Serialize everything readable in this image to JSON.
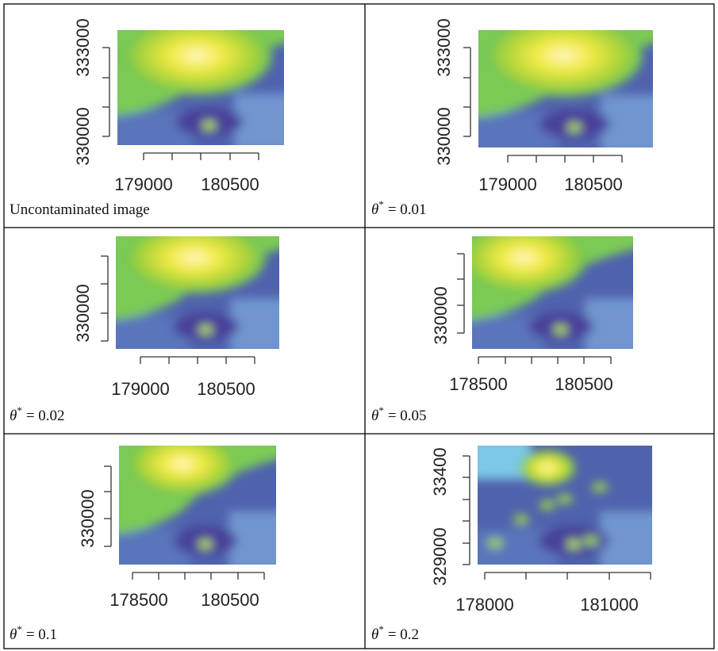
{
  "panels": [
    {
      "y_tick_labels": [
        "333000",
        "330000"
      ],
      "x_tick_labels": [
        "179000",
        "180500"
      ],
      "caption": "Uncontaminated image"
    },
    {
      "y_tick_labels": [
        "333000",
        "330000"
      ],
      "x_tick_labels": [
        "179000",
        "180500"
      ],
      "caption": {
        "variable": "θ",
        "superscript": "*",
        "value": "= 0.01"
      }
    },
    {
      "y_tick_labels": [
        "330000"
      ],
      "x_tick_labels": [
        "179000",
        "180500"
      ],
      "caption": {
        "variable": "θ",
        "superscript": "*",
        "value": "= 0.02"
      }
    },
    {
      "y_tick_labels": [
        "330000"
      ],
      "x_tick_labels": [
        "178500",
        "180500"
      ],
      "caption": {
        "variable": "θ",
        "superscript": "*",
        "value": "= 0.05"
      }
    },
    {
      "y_tick_labels": [
        "330000"
      ],
      "x_tick_labels": [
        "178500",
        "180500"
      ],
      "caption": {
        "variable": "θ",
        "superscript": "*",
        "value": "= 0.1"
      }
    },
    {
      "y_tick_labels": [
        "33400",
        "329000"
      ],
      "x_tick_labels": [
        "178000",
        "181000"
      ],
      "caption": {
        "variable": "θ",
        "superscript": "*",
        "value": "= 0.2"
      }
    }
  ]
}
